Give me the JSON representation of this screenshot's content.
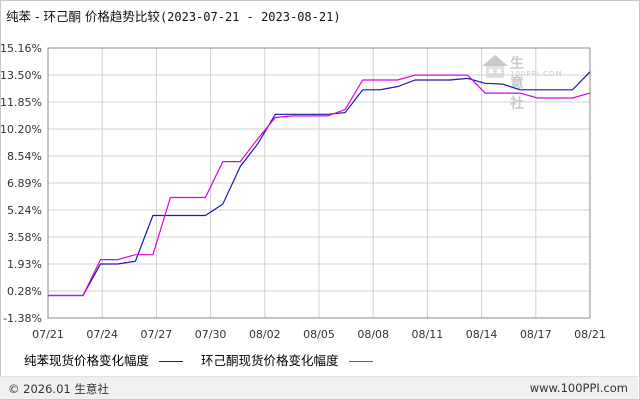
{
  "header": {
    "title": "纯苯 - 环己酮 价格趋势比较",
    "range": "(2023-07-21 - 2023-08-21)"
  },
  "footer": {
    "copyright": "© 2026.01 生意社",
    "site": "www.100PPI.com"
  },
  "watermark": {
    "text": "生意社",
    "url": "100PPI.COM"
  },
  "colors": {
    "series1": "#1a1aa6",
    "series2": "#e000e0",
    "grid": "#d0d0d0",
    "axis": "#888888"
  },
  "chart_data": {
    "type": "line",
    "y_ticks": [
      "15.16%",
      "13.50%",
      "11.85%",
      "10.20%",
      "8.54%",
      "6.89%",
      "5.24%",
      "3.58%",
      "1.93%",
      "0.28%",
      "-1.38%"
    ],
    "ylim": [
      -1.38,
      15.16
    ],
    "x_ticks": [
      "07/21",
      "07/24",
      "07/27",
      "07/30",
      "08/02",
      "08/05",
      "08/08",
      "08/11",
      "08/14",
      "08/17",
      "08/21"
    ],
    "x": [
      "07/21",
      "07/22",
      "07/23",
      "07/24",
      "07/25",
      "07/26",
      "07/27",
      "07/28",
      "07/29",
      "07/30",
      "07/31",
      "08/01",
      "08/02",
      "08/03",
      "08/04",
      "08/05",
      "08/06",
      "08/07",
      "08/08",
      "08/09",
      "08/10",
      "08/11",
      "08/12",
      "08/13",
      "08/14",
      "08/15",
      "08/16",
      "08/17",
      "08/18",
      "08/19",
      "08/20",
      "08/21"
    ],
    "series": [
      {
        "name": "纯苯现货价格变化幅度",
        "values": [
          0,
          0,
          0,
          1.93,
          1.93,
          2.1,
          4.9,
          4.9,
          4.9,
          4.9,
          5.6,
          7.9,
          9.3,
          11.1,
          11.1,
          11.1,
          11.1,
          11.2,
          12.6,
          12.6,
          12.8,
          13.2,
          13.2,
          13.2,
          13.3,
          13.0,
          12.95,
          12.6,
          12.6,
          12.6,
          12.6,
          13.7
        ]
      },
      {
        "name": "环己酮现货价格变化幅度",
        "values": [
          0,
          0,
          0,
          2.2,
          2.2,
          2.5,
          2.5,
          6.0,
          6.0,
          6.0,
          8.2,
          8.2,
          9.6,
          10.9,
          11.0,
          11.0,
          11.0,
          11.4,
          13.2,
          13.2,
          13.2,
          13.5,
          13.5,
          13.5,
          13.5,
          12.4,
          12.4,
          12.4,
          12.1,
          12.1,
          12.1,
          12.4
        ]
      }
    ]
  }
}
